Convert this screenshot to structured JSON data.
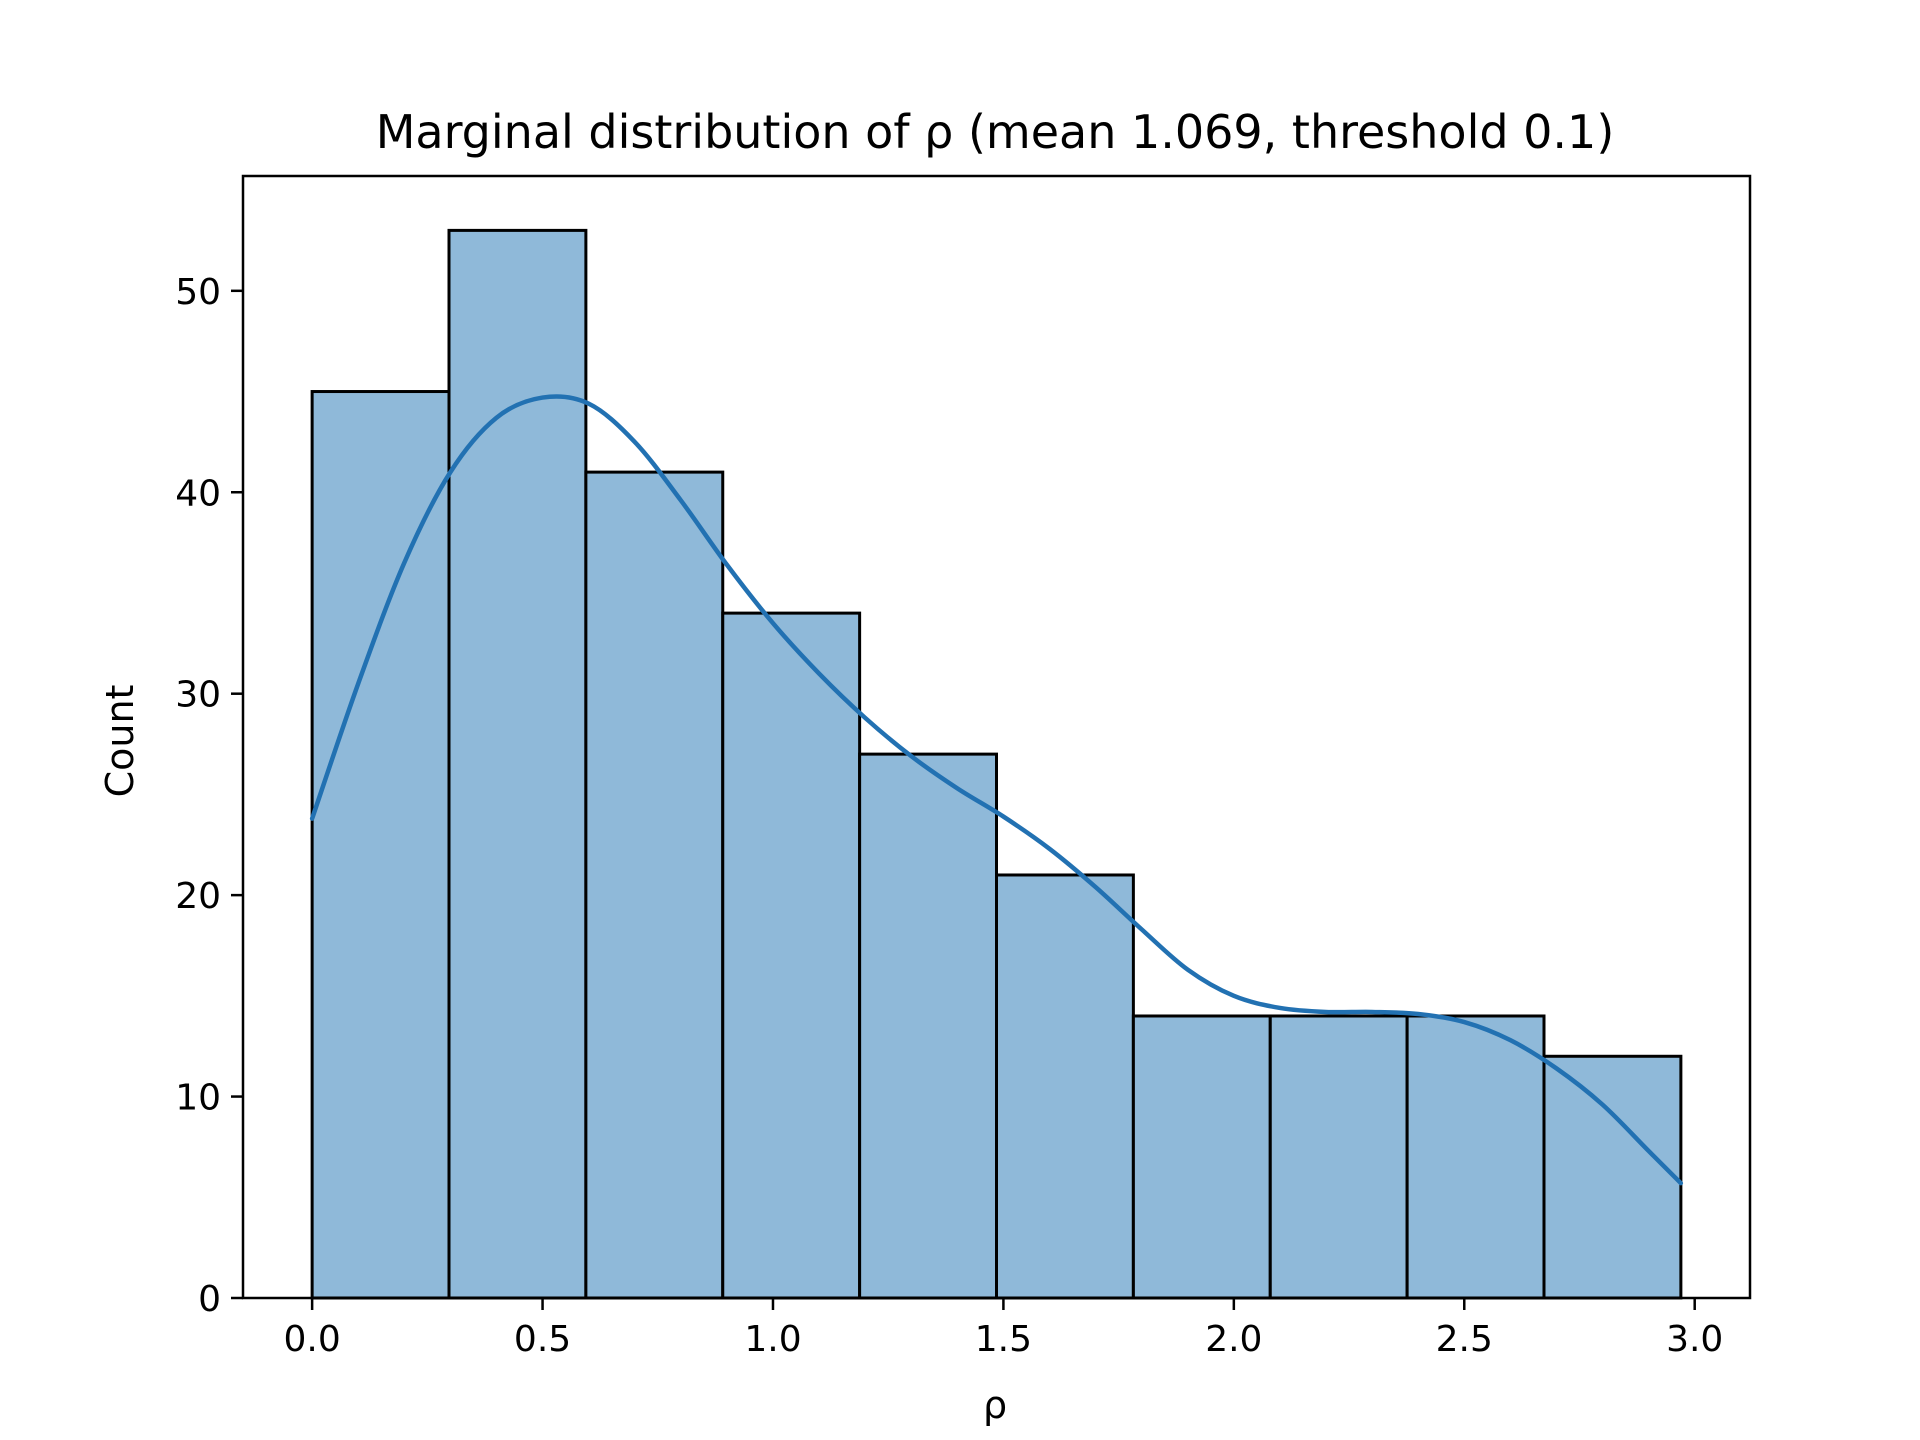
{
  "chart_data": {
    "type": "bar",
    "title": "Marginal distribution of ρ (mean 1.069, threshold 0.1)",
    "xlabel": "ρ",
    "ylabel": "Count",
    "xlim": [
      -0.15,
      3.12
    ],
    "ylim": [
      0,
      55.7
    ],
    "xticks": [
      0.0,
      0.5,
      1.0,
      1.5,
      2.0,
      2.5,
      3.0
    ],
    "xtick_labels": [
      "0.0",
      "0.5",
      "1.0",
      "1.5",
      "2.0",
      "2.5",
      "3.0"
    ],
    "yticks": [
      0,
      10,
      20,
      30,
      40,
      50
    ],
    "ytick_labels": [
      "0",
      "10",
      "20",
      "30",
      "40",
      "50"
    ],
    "grid": false,
    "bins": [
      {
        "x0": 0.0,
        "x1": 0.297,
        "count": 45
      },
      {
        "x0": 0.297,
        "x1": 0.594,
        "count": 53
      },
      {
        "x0": 0.594,
        "x1": 0.891,
        "count": 41
      },
      {
        "x0": 0.891,
        "x1": 1.188,
        "count": 34
      },
      {
        "x0": 1.188,
        "x1": 1.485,
        "count": 27
      },
      {
        "x0": 1.485,
        "x1": 1.782,
        "count": 21
      },
      {
        "x0": 1.782,
        "x1": 2.079,
        "count": 14
      },
      {
        "x0": 2.079,
        "x1": 2.376,
        "count": 14
      },
      {
        "x0": 2.376,
        "x1": 2.673,
        "count": 14
      },
      {
        "x0": 2.673,
        "x1": 2.97,
        "count": 12
      }
    ],
    "kde": {
      "x": [
        0.0,
        0.1,
        0.2,
        0.3,
        0.4,
        0.5,
        0.6,
        0.7,
        0.8,
        0.9,
        1.0,
        1.1,
        1.2,
        1.3,
        1.4,
        1.5,
        1.6,
        1.7,
        1.8,
        1.9,
        2.0,
        2.1,
        2.2,
        2.3,
        2.4,
        2.5,
        2.6,
        2.7,
        2.8,
        2.9,
        2.97
      ],
      "y": [
        23.8,
        30.5,
        36.5,
        41.0,
        43.7,
        44.7,
        44.4,
        42.5,
        39.6,
        36.4,
        33.5,
        31.0,
        28.8,
        26.9,
        25.3,
        23.9,
        22.3,
        20.4,
        18.3,
        16.3,
        15.0,
        14.4,
        14.2,
        14.2,
        14.1,
        13.7,
        12.8,
        11.4,
        9.6,
        7.3,
        5.7
      ]
    },
    "bar_color": "#8fb9d9",
    "line_color": "#2271b2"
  }
}
